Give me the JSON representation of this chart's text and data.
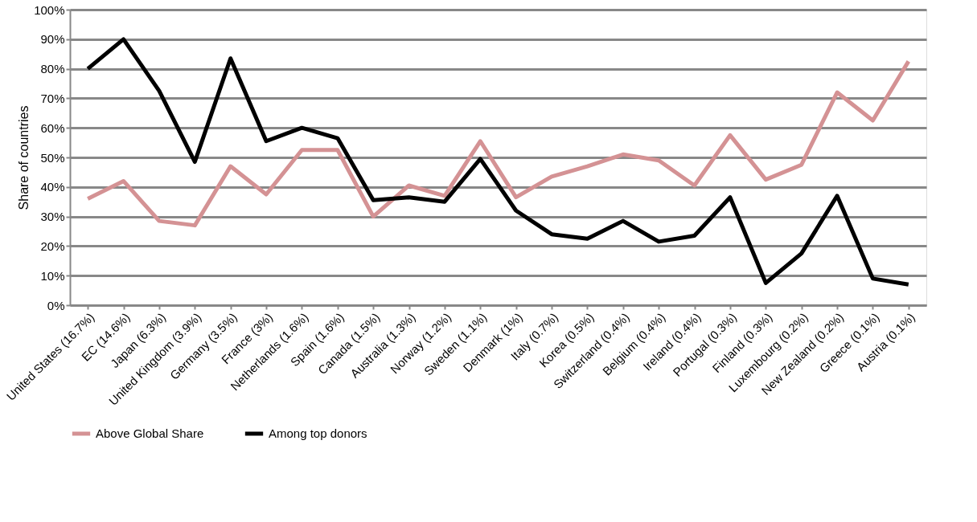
{
  "chart_data": {
    "type": "line",
    "ylabel": "Share of countries",
    "categories": [
      "United States (16.7%)",
      "EC (14.6%)",
      "Japan (6.3%)",
      "United Kingdom (3.9%)",
      "Germany (3.5%)",
      "France (3%)",
      "Netherlands (1.6%)",
      "Spain (1.6%)",
      "Canada (1.5%)",
      "Australia (1.3%)",
      "Norway (1.2%)",
      "Sweden (1.1%)",
      "Denmark (1%)",
      "Italy (0.7%)",
      "Korea (0.5%)",
      "Switzerland (0.4%)",
      "Belgium (0.4%)",
      "Ireland (0.4%)",
      "Portugal (0.3%)",
      "Finland (0.3%)",
      "Luxembourg (0.2%)",
      "New Zealand (0.2%)",
      "Greece (0.1%)",
      "Austria (0.1%)"
    ],
    "series": [
      {
        "name": "Above Global Share",
        "color": "#d49294",
        "values": [
          36,
          42,
          28.5,
          27,
          47,
          37.5,
          52.5,
          52.5,
          30,
          40.5,
          37,
          55.5,
          36.5,
          43.5,
          47,
          51,
          49,
          40.5,
          57.5,
          42.5,
          47.5,
          72,
          62.5,
          82.5
        ]
      },
      {
        "name": "Among top donors",
        "color": "#000000",
        "values": [
          80,
          90,
          72.5,
          48.5,
          83.5,
          55.5,
          60,
          56.5,
          35.5,
          36.5,
          35,
          49.5,
          32,
          24,
          22.5,
          28.5,
          21.5,
          23.5,
          36.5,
          7.5,
          17.5,
          37,
          9,
          7
        ]
      }
    ],
    "ylim": [
      0,
      100
    ],
    "yticks": [
      {
        "value": 0,
        "label": "0%"
      },
      {
        "value": 10,
        "label": "10%"
      },
      {
        "value": 20,
        "label": "20%"
      },
      {
        "value": 30,
        "label": "30%"
      },
      {
        "value": 40,
        "label": "40%"
      },
      {
        "value": 50,
        "label": "50%"
      },
      {
        "value": 60,
        "label": "60%"
      },
      {
        "value": 70,
        "label": "70%"
      },
      {
        "value": 80,
        "label": "80%"
      },
      {
        "value": 90,
        "label": "90%"
      },
      {
        "value": 100,
        "label": "100%"
      }
    ],
    "grid": "y",
    "legend": "bottom",
    "marker": "none",
    "line_style": "solid"
  }
}
